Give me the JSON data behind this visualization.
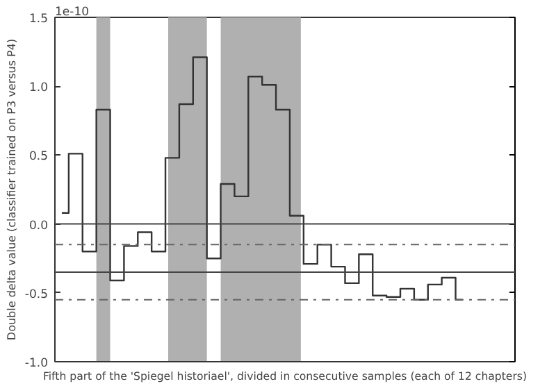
{
  "chart_data": {
    "type": "step",
    "xlabel": "Fifth part of the 'Spiegel historiael', divided in consecutive samples (each of 12 chapters)",
    "ylabel": "Double delta value (classifier trained on P3 versus P4)",
    "annotations": [
      "1e-10"
    ],
    "categories": [
      null,
      null,
      null,
      null,
      null,
      null,
      null,
      null,
      null,
      null,
      null,
      null,
      null,
      null,
      null,
      null,
      null,
      null,
      null,
      null,
      null,
      null,
      null,
      null,
      null,
      null,
      null,
      null,
      null,
      null
    ],
    "series": [
      {
        "color": "#333333",
        "values": [
          0.08,
          0.51,
          -0.2,
          0.83,
          -0.41,
          -0.16,
          -0.06,
          -0.2,
          0.48,
          0.87,
          1.21,
          -0.25,
          0.29,
          0.2,
          1.07,
          1.01,
          0.83,
          0.06,
          -0.29,
          -0.15,
          -0.31,
          -0.43,
          -0.22,
          -0.52,
          -0.53,
          -0.47,
          -0.55,
          -0.44,
          -0.39,
          -0.55
        ]
      }
    ],
    "ylim": [
      -1.0,
      1.5
    ],
    "yticks": [
      {
        "value": -1.0,
        "label": "-1.0"
      },
      {
        "value": -0.5,
        "label": "-0.5"
      },
      {
        "value": 0.0,
        "label": "0.0"
      },
      {
        "value": 0.5,
        "label": "0.5"
      },
      {
        "value": 1.0,
        "label": "1.0"
      },
      {
        "value": 1.5,
        "label": "1.5"
      }
    ],
    "grid": false,
    "ref_lines": [
      {
        "axis": "y",
        "value": 0.0,
        "color": "#444444",
        "line_style": "solid"
      },
      {
        "axis": "y",
        "value": -0.15,
        "color": "#666666",
        "line_style": "dashdot"
      },
      {
        "axis": "y",
        "value": -0.35,
        "color": "#444444",
        "line_style": "solid"
      },
      {
        "axis": "y",
        "value": -0.55,
        "color": "#666666",
        "line_style": "dashdot"
      }
    ]
  }
}
